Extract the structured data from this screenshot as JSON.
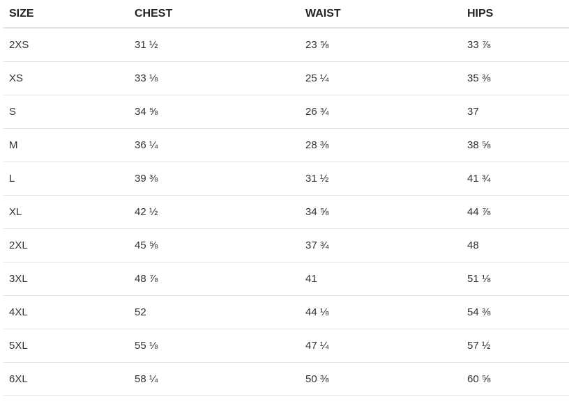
{
  "table": {
    "headers": {
      "size": "SIZE",
      "chest": "CHEST",
      "waist": "WAIST",
      "hips": "HIPS"
    },
    "rows": [
      {
        "size": "2XS",
        "chest": "31 ½",
        "waist": "23 ⅝",
        "hips": "33 ⅞"
      },
      {
        "size": "XS",
        "chest": "33 ⅛",
        "waist": "25 ¼",
        "hips": "35 ⅜"
      },
      {
        "size": "S",
        "chest": "34 ⅝",
        "waist": "26 ¾",
        "hips": "37"
      },
      {
        "size": "M",
        "chest": "36 ¼",
        "waist": "28 ⅜",
        "hips": "38 ⅝"
      },
      {
        "size": "L",
        "chest": "39 ⅜",
        "waist": "31 ½",
        "hips": "41 ¾"
      },
      {
        "size": "XL",
        "chest": "42 ½",
        "waist": "34 ⅝",
        "hips": "44 ⅞"
      },
      {
        "size": "2XL",
        "chest": "45 ⅝",
        "waist": "37 ¾",
        "hips": "48"
      },
      {
        "size": "3XL",
        "chest": "48 ⅞",
        "waist": "41",
        "hips": "51 ⅛"
      },
      {
        "size": "4XL",
        "chest": "52",
        "waist": "44 ⅛",
        "hips": "54 ⅜"
      },
      {
        "size": "5XL",
        "chest": "55 ⅛",
        "waist": "47 ¼",
        "hips": "57 ½"
      },
      {
        "size": "6XL",
        "chest": "58 ¼",
        "waist": "50 ⅜",
        "hips": "60 ⅝"
      }
    ]
  }
}
